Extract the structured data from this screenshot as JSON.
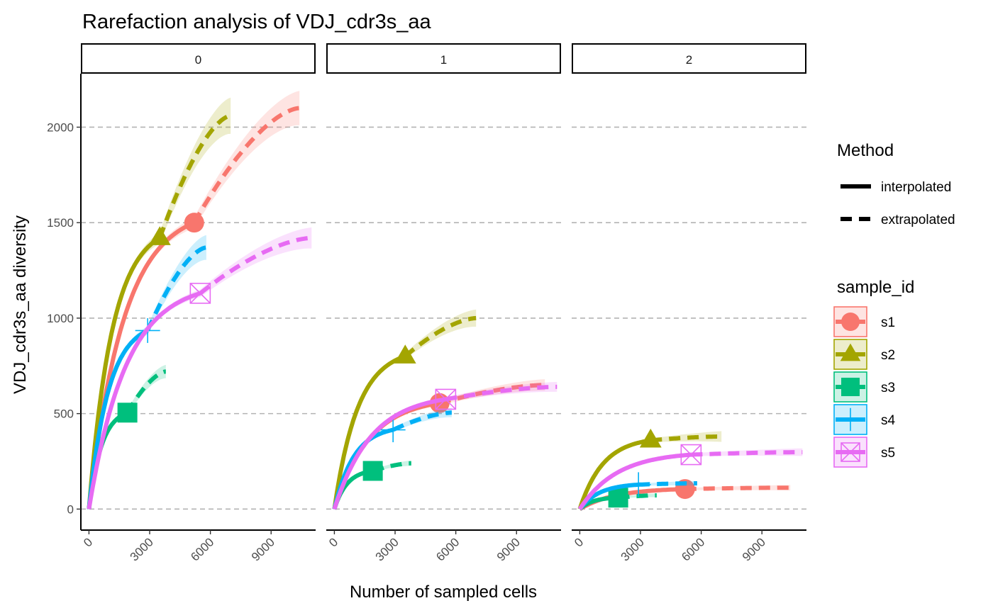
{
  "chart_data": {
    "type": "line",
    "title": "Rarefaction analysis of VDJ_cdr3s_aa",
    "xlabel": "Number of sampled cells",
    "ylabel": "VDJ_cdr3s_aa diversity",
    "xlim": [
      -400,
      11200
    ],
    "ylim": [
      -110,
      2280
    ],
    "x_ticks": [
      0,
      3000,
      6000,
      9000
    ],
    "x_tick_labels": [
      "0",
      "3000",
      "6000",
      "9000"
    ],
    "y_ticks": [
      0,
      500,
      1000,
      1500,
      2000
    ],
    "y_tick_labels": [
      "0",
      "500",
      "1000",
      "1500",
      "2000"
    ],
    "grid": "horizontal dashed major",
    "legend_position": "right",
    "facets": [
      "0",
      "1",
      "2"
    ],
    "legend": {
      "method_title": "Method",
      "methods": [
        {
          "key": "interpolated",
          "label": "interpolated",
          "dash": "solid"
        },
        {
          "key": "extrapolated",
          "label": "extrapolated",
          "dash": "dashed"
        }
      ],
      "sample_title": "sample_id",
      "samples": [
        {
          "label": "s1",
          "color": "#F8766D",
          "shape": "circle"
        },
        {
          "label": "s2",
          "color": "#A3A500",
          "shape": "triangle"
        },
        {
          "label": "s3",
          "color": "#00BF7D",
          "shape": "square"
        },
        {
          "label": "s4",
          "color": "#00B0F6",
          "shape": "plus"
        },
        {
          "label": "s5",
          "color": "#E76BF3",
          "shape": "square-x"
        }
      ]
    },
    "panels": [
      {
        "facet": "0",
        "series": [
          {
            "name": "s1",
            "observed": [
              5200,
              1500
            ],
            "x_end": 10400,
            "y_end": 2100,
            "band_obs": 28,
            "band_end": 90
          },
          {
            "name": "s2",
            "observed": [
              3500,
              1420
            ],
            "x_end": 7000,
            "y_end": 2060,
            "band_obs": 30,
            "band_end": 95
          },
          {
            "name": "s3",
            "observed": [
              1900,
              505
            ],
            "x_end": 3800,
            "y_end": 720,
            "band_obs": 14,
            "band_end": 35
          },
          {
            "name": "s4",
            "observed": [
              2900,
              935
            ],
            "x_end": 5800,
            "y_end": 1370,
            "band_obs": 22,
            "band_end": 65
          },
          {
            "name": "s5",
            "observed": [
              5500,
              1130
            ],
            "x_end": 11000,
            "y_end": 1420,
            "band_obs": 20,
            "band_end": 55
          }
        ]
      },
      {
        "facet": "1",
        "series": [
          {
            "name": "s1",
            "observed": [
              5200,
              555
            ],
            "x_end": 10400,
            "y_end": 650,
            "band_obs": 12,
            "band_end": 30
          },
          {
            "name": "s2",
            "observed": [
              3500,
              800
            ],
            "x_end": 7000,
            "y_end": 1000,
            "band_obs": 16,
            "band_end": 45
          },
          {
            "name": "s3",
            "observed": [
              1900,
              200
            ],
            "x_end": 3800,
            "y_end": 240,
            "band_obs": 6,
            "band_end": 14
          },
          {
            "name": "s4",
            "observed": [
              2900,
              415
            ],
            "x_end": 5800,
            "y_end": 505,
            "band_obs": 10,
            "band_end": 24
          },
          {
            "name": "s5",
            "observed": [
              5500,
              575
            ],
            "x_end": 11000,
            "y_end": 640,
            "band_obs": 12,
            "band_end": 26
          }
        ]
      },
      {
        "facet": "2",
        "series": [
          {
            "name": "s1",
            "observed": [
              5200,
              105
            ],
            "x_end": 10400,
            "y_end": 112,
            "band_obs": 6,
            "band_end": 14
          },
          {
            "name": "s2",
            "observed": [
              3500,
              360
            ],
            "x_end": 7000,
            "y_end": 380,
            "band_obs": 10,
            "band_end": 28
          },
          {
            "name": "s3",
            "observed": [
              1900,
              60
            ],
            "x_end": 3800,
            "y_end": 72,
            "band_obs": 4,
            "band_end": 10
          },
          {
            "name": "s4",
            "observed": [
              2900,
              128
            ],
            "x_end": 5800,
            "y_end": 135,
            "band_obs": 6,
            "band_end": 12
          },
          {
            "name": "s5",
            "observed": [
              5500,
              285
            ],
            "x_end": 11000,
            "y_end": 298,
            "band_obs": 8,
            "band_end": 20
          }
        ]
      }
    ]
  }
}
